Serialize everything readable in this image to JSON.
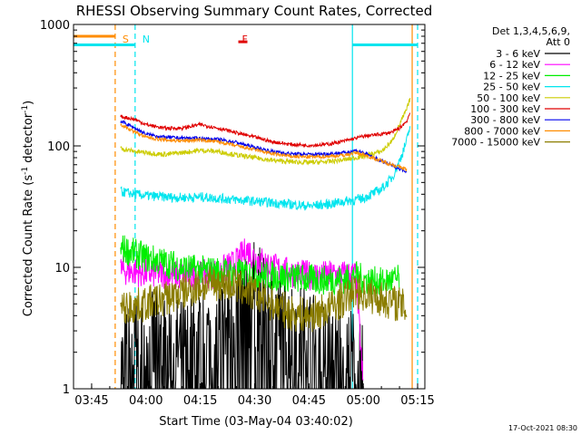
{
  "chart_data": {
    "type": "line",
    "title": "RHESSI Observing Summary Count Rates, Corrected",
    "xlabel": "Start Time (03-May-04 03:40:02)",
    "ylabel_main": "Corrected Count Rate (s",
    "ylabel_sup1": "-1",
    "ylabel_mid": " detector",
    "ylabel_sup2": "-1",
    "ylabel_end": ")",
    "y_scale": "log",
    "ylim": [
      1,
      1000
    ],
    "xlim_minutes": [
      0,
      97
    ],
    "x_ticks": [
      {
        "label": "03:45",
        "minute": 5
      },
      {
        "label": "04:00",
        "minute": 20
      },
      {
        "label": "04:15",
        "minute": 35
      },
      {
        "label": "04:30",
        "minute": 50
      },
      {
        "label": "04:45",
        "minute": 65
      },
      {
        "label": "05:00",
        "minute": 80
      },
      {
        "label": "05:15",
        "minute": 95
      }
    ],
    "y_ticks": [
      {
        "label": "1",
        "value": 1
      },
      {
        "label": "10",
        "value": 10
      },
      {
        "label": "100",
        "value": 100
      },
      {
        "label": "1000",
        "value": 1000
      }
    ],
    "legend_header": [
      "Det 1,3,4,5,6,9,",
      "Att 0"
    ],
    "legend_placement": "right",
    "timestamp": "17-Oct-2021 08:30",
    "annotations": [
      {
        "label": "S",
        "minute": 13,
        "color": "#ff8c00"
      },
      {
        "label": "N",
        "minute": 18.5,
        "color": "#00e5ee"
      },
      {
        "label": "F",
        "minute": 46,
        "color": "#e00000"
      }
    ],
    "vlines": [
      {
        "minute": 11.5,
        "color": "#ff8c00",
        "dashed": true
      },
      {
        "minute": 17,
        "color": "#00e5ee",
        "dashed": true
      },
      {
        "minute": 77,
        "color": "#00e5ee",
        "dashed": false
      },
      {
        "minute": 93.5,
        "color": "#ff8c00",
        "dashed": false
      },
      {
        "minute": 95,
        "color": "#00e5ee",
        "dashed": true
      }
    ],
    "bars": [
      {
        "x0": 0,
        "x1": 11.5,
        "value": 800,
        "color": "#ff8c00"
      },
      {
        "x0": 0,
        "x1": 17,
        "value": 680,
        "color": "#00e5ee"
      },
      {
        "x0": 77,
        "x1": 95,
        "value": 680,
        "color": "#00e5ee"
      },
      {
        "x0": 45.5,
        "x1": 48,
        "value": 720,
        "color": "#e00000"
      }
    ],
    "series": [
      {
        "name": "3 - 6 keV",
        "color": "#000000",
        "x": [
          13,
          15,
          17,
          20,
          23,
          26,
          30,
          35,
          40,
          45,
          50,
          55,
          60,
          65,
          70,
          75,
          78,
          80
        ],
        "y": [
          1.5,
          1.8,
          2.2,
          2.0,
          2.5,
          2.2,
          2.0,
          2.4,
          3.0,
          4.5,
          6.0,
          4.0,
          3.0,
          2.5,
          2.0,
          1.8,
          1.6,
          1.2
        ]
      },
      {
        "name": "6 - 12 keV",
        "color": "#ff00ff",
        "x": [
          13,
          17,
          20,
          25,
          30,
          35,
          40,
          45,
          48,
          50,
          55,
          60,
          65,
          70,
          75,
          78,
          80
        ],
        "y": [
          9.5,
          9.2,
          9.0,
          8.8,
          8.5,
          8.6,
          9.0,
          11.0,
          14.0,
          12.0,
          10.0,
          9.0,
          8.6,
          8.6,
          8.7,
          8.5,
          1.0
        ]
      },
      {
        "name": "12 - 25 keV",
        "color": "#00ee00",
        "x": [
          13,
          17,
          20,
          25,
          30,
          35,
          40,
          45,
          50,
          55,
          60,
          65,
          70,
          75,
          78,
          80,
          85,
          90
        ],
        "y": [
          14.5,
          13.0,
          12.0,
          11.0,
          10.0,
          9.5,
          9.3,
          9.0,
          8.7,
          8.5,
          8.3,
          8.0,
          7.8,
          8.0,
          8.5,
          8.0,
          7.5,
          8.0
        ]
      },
      {
        "name": "25 - 50 keV",
        "color": "#00e5ee",
        "x": [
          13,
          17,
          20,
          25,
          30,
          35,
          40,
          45,
          50,
          55,
          60,
          65,
          70,
          75,
          80,
          85,
          88,
          90,
          92,
          93
        ],
        "y": [
          42,
          40,
          39,
          38,
          37.5,
          38,
          37,
          36,
          35,
          34,
          33,
          32,
          33,
          35,
          37,
          44,
          55,
          75,
          110,
          150
        ]
      },
      {
        "name": "50 - 100 keV",
        "color": "#cccc00",
        "x": [
          13,
          17,
          20,
          25,
          30,
          35,
          40,
          45,
          50,
          55,
          60,
          65,
          70,
          75,
          80,
          85,
          88,
          90,
          92,
          93
        ],
        "y": [
          95,
          90,
          88,
          85,
          88,
          92,
          90,
          84,
          80,
          76,
          74,
          73,
          74,
          77,
          82,
          90,
          110,
          150,
          200,
          250
        ]
      },
      {
        "name": "100 - 300 keV",
        "color": "#e00000",
        "x": [
          13,
          17,
          20,
          25,
          30,
          35,
          40,
          45,
          50,
          55,
          60,
          65,
          70,
          75,
          80,
          85,
          88,
          90,
          92,
          93
        ],
        "y": [
          175,
          165,
          150,
          140,
          140,
          150,
          140,
          128,
          118,
          108,
          103,
          101,
          103,
          110,
          120,
          125,
          130,
          140,
          160,
          190
        ]
      },
      {
        "name": "300 - 800 keV",
        "color": "#0000ee",
        "x": [
          13,
          17,
          20,
          25,
          30,
          35,
          40,
          45,
          50,
          55,
          60,
          65,
          70,
          75,
          78,
          80,
          85,
          90,
          92
        ],
        "y": [
          160,
          140,
          125,
          118,
          116,
          115,
          113,
          107,
          97,
          90,
          86,
          85,
          86,
          88,
          92,
          88,
          75,
          65,
          62
        ]
      },
      {
        "name": "800 - 7000 keV",
        "color": "#ff8c00",
        "x": [
          13,
          17,
          20,
          25,
          30,
          35,
          40,
          45,
          50,
          55,
          60,
          65,
          70,
          75,
          78,
          80,
          85,
          90,
          92
        ],
        "y": [
          150,
          130,
          118,
          112,
          110,
          112,
          108,
          100,
          93,
          86,
          82,
          81,
          82,
          84,
          88,
          85,
          75,
          67,
          64
        ]
      },
      {
        "name": "7000 - 15000 keV",
        "color": "#8b7d00",
        "x": [
          13,
          17,
          20,
          25,
          30,
          35,
          40,
          45,
          50,
          55,
          60,
          65,
          70,
          75,
          78,
          80,
          85,
          90,
          92
        ],
        "y": [
          4.5,
          4.8,
          5.0,
          5.5,
          6.2,
          7.0,
          7.5,
          7.0,
          6.0,
          5.0,
          4.2,
          4.0,
          4.5,
          5.5,
          6.5,
          6.0,
          5.5,
          5.0,
          4.5
        ]
      }
    ]
  }
}
